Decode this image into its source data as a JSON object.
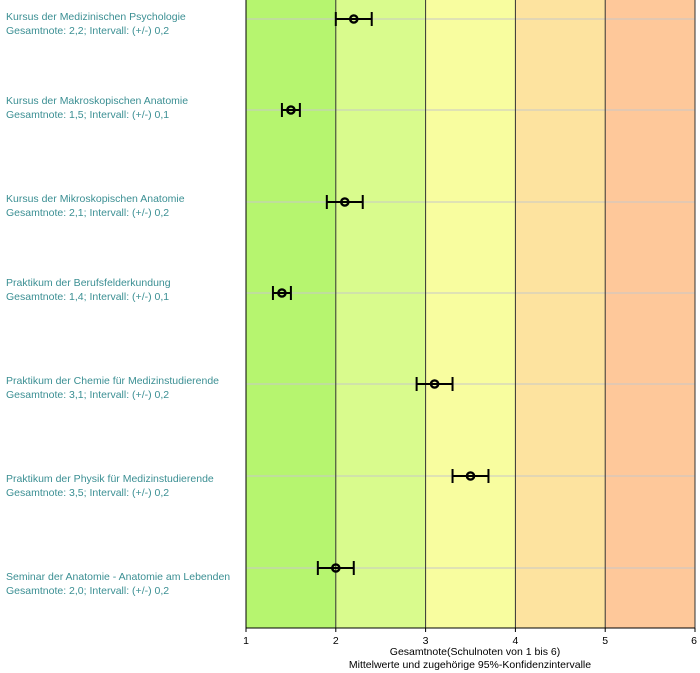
{
  "chart_data": {
    "type": "scatter",
    "orientation": "horizontal",
    "xlabel": "Gesamtnote(Schulnoten von 1 bis 6)",
    "subtitle": "Mittelwerte und zugehörige 95%-Konfidenzintervalle",
    "xlim": [
      1,
      6
    ],
    "xticks": [
      "1",
      "2",
      "3",
      "4",
      "5",
      "6"
    ],
    "note_label": "Gesamtnote:",
    "interval_label": "Intervall: (+/-)",
    "bands": [
      {
        "from": 1,
        "to": 2,
        "color": "#b6f56f"
      },
      {
        "from": 2,
        "to": 3,
        "color": "#d9fb8d"
      },
      {
        "from": 3,
        "to": 4,
        "color": "#f8fd9f"
      },
      {
        "from": 4,
        "to": 5,
        "color": "#fde39f"
      },
      {
        "from": 5,
        "to": 6,
        "color": "#fec89a"
      }
    ],
    "items": [
      {
        "name": "Kursus der Medizinischen Psychologie",
        "value": 2.2,
        "value_text": "2,2",
        "interval": 0.2,
        "interval_text": "0,2"
      },
      {
        "name": "Kursus der Makroskopischen Anatomie",
        "value": 1.5,
        "value_text": "1,5",
        "interval": 0.1,
        "interval_text": "0,1"
      },
      {
        "name": "Kursus der Mikroskopischen Anatomie",
        "value": 2.1,
        "value_text": "2,1",
        "interval": 0.2,
        "interval_text": "0,2"
      },
      {
        "name": "Praktikum der Berufsfelderkundung",
        "value": 1.4,
        "value_text": "1,4",
        "interval": 0.1,
        "interval_text": "0,1"
      },
      {
        "name": "Praktikum der Chemie für Medizinstudierende",
        "value": 3.1,
        "value_text": "3,1",
        "interval": 0.2,
        "interval_text": "0,2"
      },
      {
        "name": "Praktikum der Physik für Medizinstudierende",
        "value": 3.5,
        "value_text": "3,5",
        "interval": 0.2,
        "interval_text": "0,2"
      },
      {
        "name": "Seminar der Anatomie - Anatomie am Lebenden",
        "value": 2.0,
        "value_text": "2,0",
        "interval": 0.2,
        "interval_text": "0,2"
      }
    ]
  }
}
